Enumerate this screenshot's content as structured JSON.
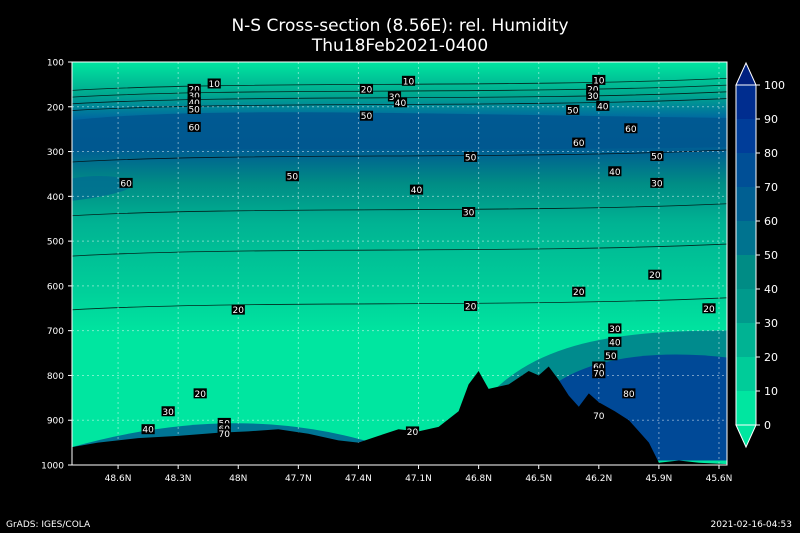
{
  "chart_data": {
    "type": "heatmap",
    "title": "N-S Cross-section (8.56E): rel. Humidity",
    "subtitle": "Thu18Feb2021-0400",
    "x_ticks": [
      "48.6N",
      "48.3N",
      "48N",
      "47.7N",
      "47.4N",
      "47.1N",
      "46.8N",
      "46.5N",
      "46.2N",
      "45.9N",
      "45.6N"
    ],
    "y_ticks": [
      100,
      200,
      300,
      400,
      500,
      600,
      700,
      800,
      900,
      1000
    ],
    "y_range": [
      100,
      1000
    ],
    "y_inverted": true,
    "colorbar": {
      "ticks": [
        0,
        10,
        20,
        30,
        40,
        50,
        60,
        70,
        80,
        90,
        100
      ],
      "colors": [
        "#00e6a0",
        "#00cc99",
        "#00b393",
        "#009a8c",
        "#008c85",
        "#00738f",
        "#005f92",
        "#004f96",
        "#003d99",
        "#002d8f"
      ]
    },
    "contour_labels": [
      {
        "value": "10",
        "lat": 48.12,
        "p": 148
      },
      {
        "value": "20",
        "lat": 48.22,
        "p": 160
      },
      {
        "value": "30",
        "lat": 48.22,
        "p": 175
      },
      {
        "value": "40",
        "lat": 48.22,
        "p": 190
      },
      {
        "value": "50",
        "lat": 48.22,
        "p": 205
      },
      {
        "value": "60",
        "lat": 48.22,
        "p": 245
      },
      {
        "value": "60",
        "lat": 48.56,
        "p": 370
      },
      {
        "value": "50",
        "lat": 47.73,
        "p": 355
      },
      {
        "value": "20",
        "lat": 47.36,
        "p": 160
      },
      {
        "value": "30",
        "lat": 47.22,
        "p": 177
      },
      {
        "value": "40",
        "lat": 47.19,
        "p": 190
      },
      {
        "value": "50",
        "lat": 47.36,
        "p": 220
      },
      {
        "value": "10",
        "lat": 47.15,
        "p": 142
      },
      {
        "value": "50",
        "lat": 46.84,
        "p": 312
      },
      {
        "value": "40",
        "lat": 47.11,
        "p": 385
      },
      {
        "value": "30",
        "lat": 46.85,
        "p": 435
      },
      {
        "value": "20",
        "lat": 48.0,
        "p": 653
      },
      {
        "value": "20",
        "lat": 46.84,
        "p": 645
      },
      {
        "value": "20",
        "lat": 46.3,
        "p": 613
      },
      {
        "value": "20",
        "lat": 45.92,
        "p": 575
      },
      {
        "value": "20",
        "lat": 45.65,
        "p": 650
      },
      {
        "value": "20",
        "lat": 46.23,
        "p": 160
      },
      {
        "value": "30",
        "lat": 46.23,
        "p": 175
      },
      {
        "value": "10",
        "lat": 46.2,
        "p": 140
      },
      {
        "value": "40",
        "lat": 46.18,
        "p": 198
      },
      {
        "value": "50",
        "lat": 46.33,
        "p": 207
      },
      {
        "value": "60",
        "lat": 46.3,
        "p": 280
      },
      {
        "value": "60",
        "lat": 46.04,
        "p": 248
      },
      {
        "value": "50",
        "lat": 45.91,
        "p": 310
      },
      {
        "value": "40",
        "lat": 46.12,
        "p": 344
      },
      {
        "value": "30",
        "lat": 45.91,
        "p": 370
      },
      {
        "value": "30",
        "lat": 46.12,
        "p": 695
      },
      {
        "value": "40",
        "lat": 46.12,
        "p": 725
      },
      {
        "value": "50",
        "lat": 46.14,
        "p": 755
      },
      {
        "value": "60",
        "lat": 46.2,
        "p": 780
      },
      {
        "value": "70",
        "lat": 46.2,
        "p": 795
      },
      {
        "value": "80",
        "lat": 46.05,
        "p": 840
      },
      {
        "value": "70",
        "lat": 46.2,
        "p": 890
      },
      {
        "value": "20",
        "lat": 48.19,
        "p": 840
      },
      {
        "value": "30",
        "lat": 48.35,
        "p": 880
      },
      {
        "value": "40",
        "lat": 48.45,
        "p": 920
      },
      {
        "value": "50",
        "lat": 48.07,
        "p": 906
      },
      {
        "value": "60",
        "lat": 48.07,
        "p": 918
      },
      {
        "value": "70",
        "lat": 48.07,
        "p": 930
      },
      {
        "value": "20",
        "lat": 47.13,
        "p": 925
      }
    ],
    "terrain": [
      [
        48.83,
        960
      ],
      [
        48.7,
        950
      ],
      [
        48.5,
        940
      ],
      [
        48.3,
        935
      ],
      [
        48.1,
        928
      ],
      [
        47.95,
        925
      ],
      [
        47.8,
        920
      ],
      [
        47.65,
        930
      ],
      [
        47.5,
        945
      ],
      [
        47.4,
        950
      ],
      [
        47.3,
        935
      ],
      [
        47.2,
        920
      ],
      [
        47.1,
        925
      ],
      [
        47.0,
        915
      ],
      [
        46.9,
        880
      ],
      [
        46.85,
        820
      ],
      [
        46.8,
        790
      ],
      [
        46.75,
        830
      ],
      [
        46.65,
        820
      ],
      [
        46.55,
        790
      ],
      [
        46.5,
        800
      ],
      [
        46.45,
        780
      ],
      [
        46.4,
        810
      ],
      [
        46.35,
        845
      ],
      [
        46.3,
        870
      ],
      [
        46.25,
        840
      ],
      [
        46.2,
        860
      ],
      [
        46.12,
        880
      ],
      [
        46.05,
        900
      ],
      [
        45.95,
        950
      ],
      [
        45.9,
        995
      ],
      [
        45.8,
        990
      ],
      [
        45.7,
        995
      ],
      [
        45.56,
        998
      ]
    ]
  },
  "footer": {
    "left": "GrADS: IGES/COLA",
    "right": "2021-02-16-04:53"
  }
}
